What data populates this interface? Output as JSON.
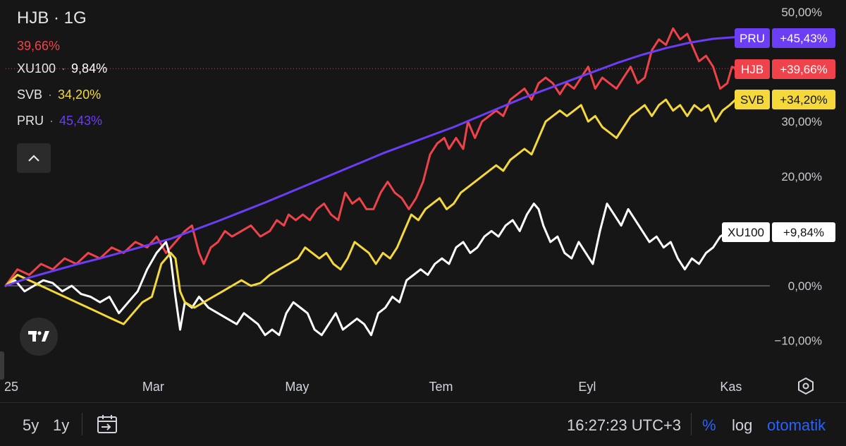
{
  "legend": {
    "title": "HJB · 1G",
    "main_value": "39,66%",
    "rows": [
      {
        "name": "XU100",
        "value": "9,84%",
        "color": "#ffffff"
      },
      {
        "name": "SVB",
        "value": "34,20%",
        "color": "#f5d93a"
      },
      {
        "name": "PRU",
        "value": "45,43%",
        "color": "#6b3df5"
      }
    ]
  },
  "icons": {
    "collapse": "chevron-up-icon",
    "logo": "tradingview-logo",
    "settings": "settings-hexagon-icon",
    "goto_date": "calendar-goto-icon"
  },
  "bottom_bar": {
    "range_5y": "5y",
    "range_1y": "1y",
    "clock": "16:27:23 UTC+3",
    "percent": "%",
    "log": "log",
    "auto": "otomatik"
  },
  "colors": {
    "background": "#161616",
    "HJB": "#f0424a",
    "XU100": "#ffffff",
    "SVB": "#f5d93a",
    "PRU": "#6b3df5",
    "accent": "#2962ff"
  },
  "chart_data": {
    "type": "line",
    "y_unit": "%",
    "ylim": [
      -15,
      52
    ],
    "y_ticks": [
      "50,00%",
      "30,00%",
      "20,00%",
      "0,00%",
      "−10,00%"
    ],
    "y_tick_values": [
      50,
      30,
      20,
      0,
      -10
    ],
    "x_ticks": [
      "25",
      "Mar",
      "May",
      "Tem",
      "Eyl",
      "Kas"
    ],
    "x_tick_days": [
      0,
      59,
      120,
      181,
      243,
      304
    ],
    "x_range_days": [
      0,
      310
    ],
    "series": [
      {
        "name": "HJB",
        "color": "#f0424a",
        "tag": "+39,66%",
        "points": [
          [
            0,
            0
          ],
          [
            5,
            3
          ],
          [
            10,
            2
          ],
          [
            15,
            4
          ],
          [
            20,
            3
          ],
          [
            25,
            5
          ],
          [
            30,
            4
          ],
          [
            35,
            6
          ],
          [
            40,
            5
          ],
          [
            45,
            7
          ],
          [
            50,
            6
          ],
          [
            55,
            8
          ],
          [
            60,
            7
          ],
          [
            64,
            9
          ],
          [
            68,
            6
          ],
          [
            72,
            8
          ],
          [
            76,
            10
          ],
          [
            79,
            11
          ],
          [
            82,
            6
          ],
          [
            84,
            4
          ],
          [
            87,
            7
          ],
          [
            90,
            8
          ],
          [
            93,
            10
          ],
          [
            96,
            9
          ],
          [
            100,
            10
          ],
          [
            104,
            11
          ],
          [
            108,
            9
          ],
          [
            112,
            10
          ],
          [
            115,
            12
          ],
          [
            118,
            11
          ],
          [
            120,
            13
          ],
          [
            123,
            12
          ],
          [
            126,
            13
          ],
          [
            129,
            12
          ],
          [
            132,
            14
          ],
          [
            135,
            15
          ],
          [
            138,
            13
          ],
          [
            141,
            12
          ],
          [
            144,
            17
          ],
          [
            147,
            15
          ],
          [
            150,
            16
          ],
          [
            153,
            14
          ],
          [
            156,
            14
          ],
          [
            159,
            17
          ],
          [
            162,
            19
          ],
          [
            165,
            17
          ],
          [
            168,
            16
          ],
          [
            171,
            14
          ],
          [
            174,
            16
          ],
          [
            177,
            19
          ],
          [
            180,
            24
          ],
          [
            183,
            26
          ],
          [
            186,
            27
          ],
          [
            188,
            25
          ],
          [
            191,
            27
          ],
          [
            194,
            25
          ],
          [
            196,
            30
          ],
          [
            199,
            27
          ],
          [
            202,
            30
          ],
          [
            205,
            31
          ],
          [
            208,
            32
          ],
          [
            211,
            31
          ],
          [
            214,
            34
          ],
          [
            217,
            35
          ],
          [
            220,
            36
          ],
          [
            223,
            34
          ],
          [
            226,
            37
          ],
          [
            229,
            38
          ],
          [
            232,
            37
          ],
          [
            235,
            35
          ],
          [
            238,
            37
          ],
          [
            241,
            36
          ],
          [
            244,
            38
          ],
          [
            247,
            40
          ],
          [
            250,
            36
          ],
          [
            253,
            38
          ],
          [
            256,
            37
          ],
          [
            259,
            36
          ],
          [
            262,
            38
          ],
          [
            265,
            40
          ],
          [
            268,
            37
          ],
          [
            271,
            38
          ],
          [
            274,
            43
          ],
          [
            277,
            45
          ],
          [
            280,
            44
          ],
          [
            283,
            47
          ],
          [
            286,
            45
          ],
          [
            289,
            46
          ],
          [
            292,
            43
          ],
          [
            294,
            41
          ],
          [
            297,
            42
          ],
          [
            300,
            40
          ],
          [
            303,
            36
          ],
          [
            306,
            37
          ],
          [
            308,
            40
          ],
          [
            310,
            39.66
          ]
        ]
      },
      {
        "name": "XU100",
        "color": "#ffffff",
        "tag": "+9,84%",
        "points": [
          [
            0,
            0
          ],
          [
            4,
            1
          ],
          [
            8,
            -1
          ],
          [
            12,
            0
          ],
          [
            16,
            1
          ],
          [
            20,
            0.5
          ],
          [
            24,
            -1
          ],
          [
            28,
            0
          ],
          [
            32,
            -1.5
          ],
          [
            36,
            -2
          ],
          [
            40,
            -3
          ],
          [
            44,
            -2
          ],
          [
            48,
            -5
          ],
          [
            52,
            -3
          ],
          [
            56,
            -1
          ],
          [
            60,
            3
          ],
          [
            64,
            6
          ],
          [
            68,
            8
          ],
          [
            70,
            5
          ],
          [
            72,
            -2
          ],
          [
            74,
            -8
          ],
          [
            76,
            -3
          ],
          [
            79,
            -4
          ],
          [
            82,
            -2
          ],
          [
            86,
            -4
          ],
          [
            90,
            -5
          ],
          [
            94,
            -6
          ],
          [
            98,
            -7
          ],
          [
            101,
            -5
          ],
          [
            104,
            -6
          ],
          [
            107,
            -7
          ],
          [
            110,
            -9
          ],
          [
            113,
            -8
          ],
          [
            116,
            -9
          ],
          [
            119,
            -5
          ],
          [
            122,
            -3
          ],
          [
            125,
            -4
          ],
          [
            128,
            -5
          ],
          [
            131,
            -8
          ],
          [
            134,
            -9
          ],
          [
            137,
            -7
          ],
          [
            140,
            -5
          ],
          [
            143,
            -8
          ],
          [
            146,
            -7
          ],
          [
            149,
            -6
          ],
          [
            152,
            -7
          ],
          [
            155,
            -9
          ],
          [
            158,
            -5
          ],
          [
            161,
            -4
          ],
          [
            164,
            -2
          ],
          [
            167,
            -3
          ],
          [
            170,
            1
          ],
          [
            173,
            2
          ],
          [
            176,
            3
          ],
          [
            179,
            2
          ],
          [
            182,
            4
          ],
          [
            185,
            5
          ],
          [
            188,
            4
          ],
          [
            191,
            7
          ],
          [
            194,
            8
          ],
          [
            197,
            6
          ],
          [
            200,
            7
          ],
          [
            203,
            9
          ],
          [
            206,
            10
          ],
          [
            209,
            9
          ],
          [
            212,
            11
          ],
          [
            215,
            12
          ],
          [
            218,
            10
          ],
          [
            221,
            13
          ],
          [
            224,
            15
          ],
          [
            226,
            14
          ],
          [
            228,
            11
          ],
          [
            231,
            8
          ],
          [
            234,
            9
          ],
          [
            237,
            6
          ],
          [
            240,
            5
          ],
          [
            243,
            8
          ],
          [
            246,
            6
          ],
          [
            249,
            4
          ],
          [
            252,
            10
          ],
          [
            255,
            15
          ],
          [
            258,
            13
          ],
          [
            261,
            11
          ],
          [
            264,
            14
          ],
          [
            267,
            12
          ],
          [
            270,
            10
          ],
          [
            273,
            8
          ],
          [
            276,
            9
          ],
          [
            279,
            7
          ],
          [
            282,
            8
          ],
          [
            285,
            5
          ],
          [
            288,
            3
          ],
          [
            291,
            5
          ],
          [
            294,
            4
          ],
          [
            297,
            6
          ],
          [
            300,
            7
          ],
          [
            303,
            9
          ],
          [
            306,
            9.84
          ]
        ]
      },
      {
        "name": "SVB",
        "color": "#f5d93a",
        "tag": "+34,20%",
        "points": [
          [
            0,
            0
          ],
          [
            5,
            2
          ],
          [
            10,
            1
          ],
          [
            15,
            0
          ],
          [
            20,
            -1
          ],
          [
            25,
            -2
          ],
          [
            30,
            -3
          ],
          [
            35,
            -4
          ],
          [
            40,
            -5
          ],
          [
            45,
            -6
          ],
          [
            50,
            -7
          ],
          [
            54,
            -5
          ],
          [
            58,
            -3
          ],
          [
            62,
            -2
          ],
          [
            66,
            4
          ],
          [
            70,
            6
          ],
          [
            72,
            5
          ],
          [
            74,
            -1
          ],
          [
            76,
            -3
          ],
          [
            80,
            -4
          ],
          [
            84,
            -3
          ],
          [
            88,
            -2
          ],
          [
            92,
            -1
          ],
          [
            96,
            0
          ],
          [
            100,
            1
          ],
          [
            104,
            0
          ],
          [
            108,
            0.5
          ],
          [
            112,
            2
          ],
          [
            116,
            3
          ],
          [
            120,
            4
          ],
          [
            124,
            5
          ],
          [
            127,
            7
          ],
          [
            130,
            6
          ],
          [
            133,
            5
          ],
          [
            136,
            6
          ],
          [
            139,
            4
          ],
          [
            142,
            3
          ],
          [
            145,
            5
          ],
          [
            148,
            8
          ],
          [
            151,
            7
          ],
          [
            154,
            6
          ],
          [
            157,
            4
          ],
          [
            160,
            6
          ],
          [
            163,
            5
          ],
          [
            166,
            7
          ],
          [
            169,
            10
          ],
          [
            172,
            13
          ],
          [
            175,
            12
          ],
          [
            178,
            14
          ],
          [
            181,
            15
          ],
          [
            184,
            16
          ],
          [
            187,
            14
          ],
          [
            190,
            15
          ],
          [
            193,
            17
          ],
          [
            196,
            18
          ],
          [
            199,
            19
          ],
          [
            202,
            20
          ],
          [
            205,
            21
          ],
          [
            208,
            22
          ],
          [
            211,
            21
          ],
          [
            214,
            23
          ],
          [
            217,
            24
          ],
          [
            220,
            25
          ],
          [
            223,
            24
          ],
          [
            226,
            27
          ],
          [
            229,
            30
          ],
          [
            232,
            31
          ],
          [
            235,
            32
          ],
          [
            238,
            31
          ],
          [
            241,
            32
          ],
          [
            244,
            33
          ],
          [
            247,
            30
          ],
          [
            250,
            31
          ],
          [
            253,
            29
          ],
          [
            256,
            28
          ],
          [
            259,
            27
          ],
          [
            262,
            29
          ],
          [
            265,
            31
          ],
          [
            268,
            32
          ],
          [
            271,
            33
          ],
          [
            274,
            31
          ],
          [
            277,
            33
          ],
          [
            280,
            34
          ],
          [
            283,
            32
          ],
          [
            286,
            33
          ],
          [
            289,
            31
          ],
          [
            292,
            33
          ],
          [
            295,
            32
          ],
          [
            298,
            33
          ],
          [
            301,
            30
          ],
          [
            304,
            32
          ],
          [
            307,
            33
          ],
          [
            310,
            34.2
          ]
        ]
      },
      {
        "name": "PRU",
        "color": "#6b3df5",
        "tag": "+45,43%",
        "points": [
          [
            0,
            0
          ],
          [
            10,
            1.5
          ],
          [
            20,
            2.7
          ],
          [
            30,
            3.9
          ],
          [
            40,
            5
          ],
          [
            50,
            6.2
          ],
          [
            60,
            7.4
          ],
          [
            70,
            8.6
          ],
          [
            80,
            10.2
          ],
          [
            90,
            11.8
          ],
          [
            100,
            13.5
          ],
          [
            110,
            15.2
          ],
          [
            120,
            17
          ],
          [
            130,
            18.8
          ],
          [
            140,
            20.6
          ],
          [
            150,
            22.4
          ],
          [
            160,
            24.2
          ],
          [
            170,
            25.8
          ],
          [
            180,
            27.4
          ],
          [
            190,
            29
          ],
          [
            200,
            30.8
          ],
          [
            210,
            32.6
          ],
          [
            220,
            34.4
          ],
          [
            230,
            36
          ],
          [
            240,
            37.6
          ],
          [
            250,
            39.2
          ],
          [
            260,
            40.8
          ],
          [
            270,
            42.2
          ],
          [
            280,
            43.4
          ],
          [
            290,
            44.4
          ],
          [
            300,
            45.1
          ],
          [
            310,
            45.43
          ]
        ]
      }
    ]
  }
}
